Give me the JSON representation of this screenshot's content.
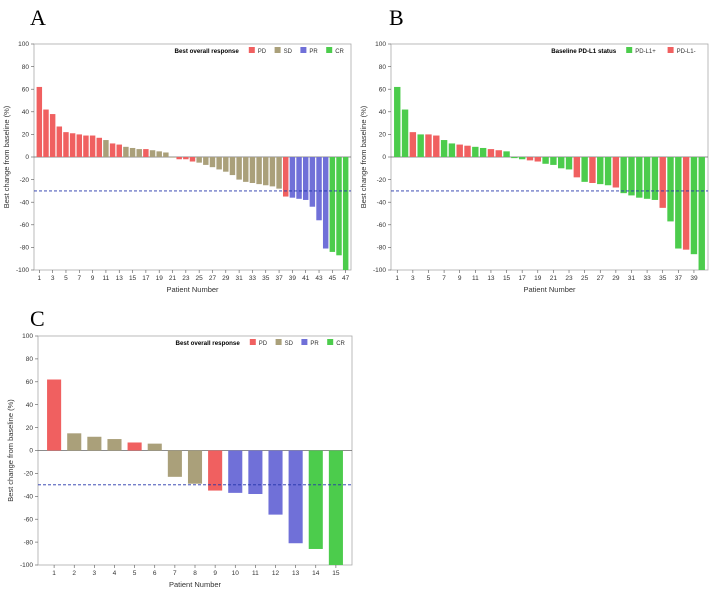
{
  "colors": {
    "PD": "#f06060",
    "SD": "#aaa07a",
    "PR": "#7070d8",
    "CR": "#4ccc4c",
    "PD-L1+": "#4ccc4c",
    "PD-L1-": "#f06060",
    "ref": "#2233aa"
  },
  "chart_data": [
    {
      "panel": "A",
      "type": "bar",
      "xlabel": "Patient Number",
      "ylabel": "Best change from baseline (%)",
      "ylim": [
        -100,
        100
      ],
      "yticks": [
        100,
        80,
        60,
        40,
        20,
        0,
        -20,
        -40,
        -60,
        -80,
        -100
      ],
      "xticks": [
        "1",
        "3",
        "5",
        "7",
        "9",
        "11",
        "13",
        "15",
        "17",
        "19",
        "21",
        "23",
        "25",
        "27",
        "29",
        "31",
        "33",
        "35",
        "37",
        "39",
        "41",
        "43",
        "45",
        "47"
      ],
      "reference_line": -30,
      "legend_title": "Best overall response",
      "legend": [
        "PD",
        "SD",
        "PR",
        "CR"
      ],
      "values": [
        62,
        42,
        38,
        27,
        22,
        21,
        20,
        19,
        19,
        17,
        15,
        12,
        11,
        9,
        8,
        7,
        7,
        6,
        5,
        4,
        0,
        -2,
        -2,
        -4,
        -5,
        -7,
        -9,
        -11,
        -13,
        -16,
        -20,
        -22,
        -23,
        -24,
        -25,
        -26,
        -28,
        -35,
        -36,
        -37,
        -38,
        -44,
        -56,
        -81,
        -84,
        -87,
        -100
      ],
      "groups": [
        "PD",
        "PD",
        "PD",
        "PD",
        "PD",
        "PD",
        "PD",
        "PD",
        "PD",
        "PD",
        "SD",
        "PD",
        "PD",
        "SD",
        "SD",
        "SD",
        "PD",
        "SD",
        "SD",
        "SD",
        "SD",
        "PD",
        "PD",
        "PD",
        "SD",
        "SD",
        "SD",
        "SD",
        "SD",
        "SD",
        "SD",
        "SD",
        "SD",
        "SD",
        "SD",
        "SD",
        "SD",
        "PD",
        "PR",
        "PR",
        "PR",
        "PR",
        "PR",
        "PR",
        "CR",
        "CR",
        "CR"
      ]
    },
    {
      "panel": "B",
      "type": "bar",
      "xlabel": "Patient Number",
      "ylabel": "Best change from baseline (%)",
      "ylim": [
        -100,
        100
      ],
      "yticks": [
        100,
        80,
        60,
        40,
        20,
        0,
        -20,
        -40,
        -60,
        -80,
        -100
      ],
      "xticks": [
        "1",
        "3",
        "5",
        "7",
        "9",
        "11",
        "13",
        "15",
        "17",
        "19",
        "21",
        "23",
        "25",
        "27",
        "29",
        "31",
        "33",
        "35",
        "37",
        "39"
      ],
      "reference_line": -30,
      "legend_title": "Baseline PD-L1 status",
      "legend": [
        "PD-L1+",
        "PD-L1-"
      ],
      "values": [
        62,
        42,
        22,
        20,
        20,
        19,
        15,
        12,
        11,
        10,
        9,
        8,
        7,
        6,
        5,
        -1,
        -2,
        -3,
        -4,
        -6,
        -7,
        -10,
        -11,
        -18,
        -22,
        -23,
        -24,
        -25,
        -27,
        -32,
        -34,
        -36,
        -37,
        -38,
        -45,
        -57,
        -81,
        -82,
        -86,
        -100
      ],
      "groups": [
        "PD-L1+",
        "PD-L1+",
        "PD-L1-",
        "PD-L1+",
        "PD-L1-",
        "PD-L1-",
        "PD-L1+",
        "PD-L1+",
        "PD-L1-",
        "PD-L1-",
        "PD-L1+",
        "PD-L1+",
        "PD-L1-",
        "PD-L1-",
        "PD-L1+",
        "PD-L1+",
        "PD-L1+",
        "PD-L1-",
        "PD-L1-",
        "PD-L1+",
        "PD-L1+",
        "PD-L1+",
        "PD-L1+",
        "PD-L1-",
        "PD-L1+",
        "PD-L1-",
        "PD-L1+",
        "PD-L1+",
        "PD-L1-",
        "PD-L1+",
        "PD-L1+",
        "PD-L1+",
        "PD-L1+",
        "PD-L1+",
        "PD-L1-",
        "PD-L1+",
        "PD-L1+",
        "PD-L1-",
        "PD-L1+",
        "PD-L1+"
      ]
    },
    {
      "panel": "C",
      "type": "bar",
      "xlabel": "Patient Number",
      "ylabel": "Best change from baseline (%)",
      "ylim": [
        -100,
        100
      ],
      "yticks": [
        100,
        80,
        60,
        40,
        20,
        0,
        -20,
        -40,
        -60,
        -80,
        -100
      ],
      "xticks": [
        "1",
        "2",
        "3",
        "4",
        "5",
        "6",
        "7",
        "8",
        "9",
        "10",
        "11",
        "12",
        "13",
        "14",
        "15"
      ],
      "reference_line": -30,
      "legend_title": "Best overall response",
      "legend": [
        "PD",
        "SD",
        "PR",
        "CR"
      ],
      "values": [
        62,
        15,
        12,
        10,
        7,
        6,
        -23,
        -29,
        -35,
        -37,
        -38,
        -56,
        -81,
        -86,
        -100
      ],
      "groups": [
        "PD",
        "SD",
        "SD",
        "SD",
        "PD",
        "SD",
        "SD",
        "SD",
        "PD",
        "PR",
        "PR",
        "PR",
        "PR",
        "CR",
        "CR"
      ]
    }
  ]
}
